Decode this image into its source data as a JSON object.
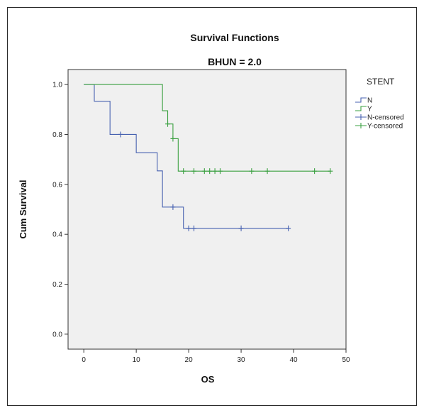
{
  "chart_data": {
    "type": "line",
    "step": true,
    "title": "Survival Functions",
    "subtitle": "BHUN = 2.0",
    "xlabel": "OS",
    "ylabel": "Cum Survival",
    "xlim": [
      -3,
      50
    ],
    "ylim": [
      -0.06,
      1.06
    ],
    "xticks": [
      0,
      10,
      20,
      30,
      40,
      50
    ],
    "yticks": [
      0.0,
      0.2,
      0.4,
      0.6,
      0.8,
      1.0
    ],
    "xtick_labels": [
      "0",
      "10",
      "20",
      "30",
      "40",
      "50"
    ],
    "ytick_labels": [
      "0.0",
      "0.2",
      "0.4",
      "0.6",
      "0.8",
      "1.0"
    ],
    "grid": false,
    "legend_title": "STENT",
    "legend_position": "right",
    "plot_background": "#f0f0f0",
    "legend": [
      {
        "label": "N",
        "color": "#4661b0",
        "marker": "line"
      },
      {
        "label": "Y",
        "color": "#3aa040",
        "marker": "line"
      },
      {
        "label": "N-censored",
        "color": "#4661b0",
        "marker": "plus"
      },
      {
        "label": "Y-censored",
        "color": "#3aa040",
        "marker": "plus"
      }
    ],
    "series": [
      {
        "name": "N",
        "color": "#4661b0",
        "steps": [
          [
            0,
            1.0
          ],
          [
            2,
            0.933
          ],
          [
            5,
            0.8
          ],
          [
            10,
            0.727
          ],
          [
            14,
            0.654
          ],
          [
            15,
            0.509
          ],
          [
            19,
            0.424
          ],
          [
            39,
            0.424
          ]
        ],
        "censored": [
          [
            7,
            0.8
          ],
          [
            17,
            0.509
          ],
          [
            20,
            0.424
          ],
          [
            21,
            0.424
          ],
          [
            30,
            0.424
          ],
          [
            39,
            0.424
          ]
        ]
      },
      {
        "name": "Y",
        "color": "#3aa040",
        "steps": [
          [
            0,
            1.0
          ],
          [
            15,
            0.895
          ],
          [
            16,
            0.842
          ],
          [
            17,
            0.783
          ],
          [
            18,
            0.653
          ],
          [
            47,
            0.653
          ]
        ],
        "censored": [
          [
            16,
            0.842
          ],
          [
            17,
            0.783
          ],
          [
            19,
            0.653
          ],
          [
            21,
            0.653
          ],
          [
            23,
            0.653
          ],
          [
            24,
            0.653
          ],
          [
            25,
            0.653
          ],
          [
            26,
            0.653
          ],
          [
            32,
            0.653
          ],
          [
            35,
            0.653
          ],
          [
            44,
            0.653
          ],
          [
            47,
            0.653
          ]
        ]
      }
    ]
  }
}
